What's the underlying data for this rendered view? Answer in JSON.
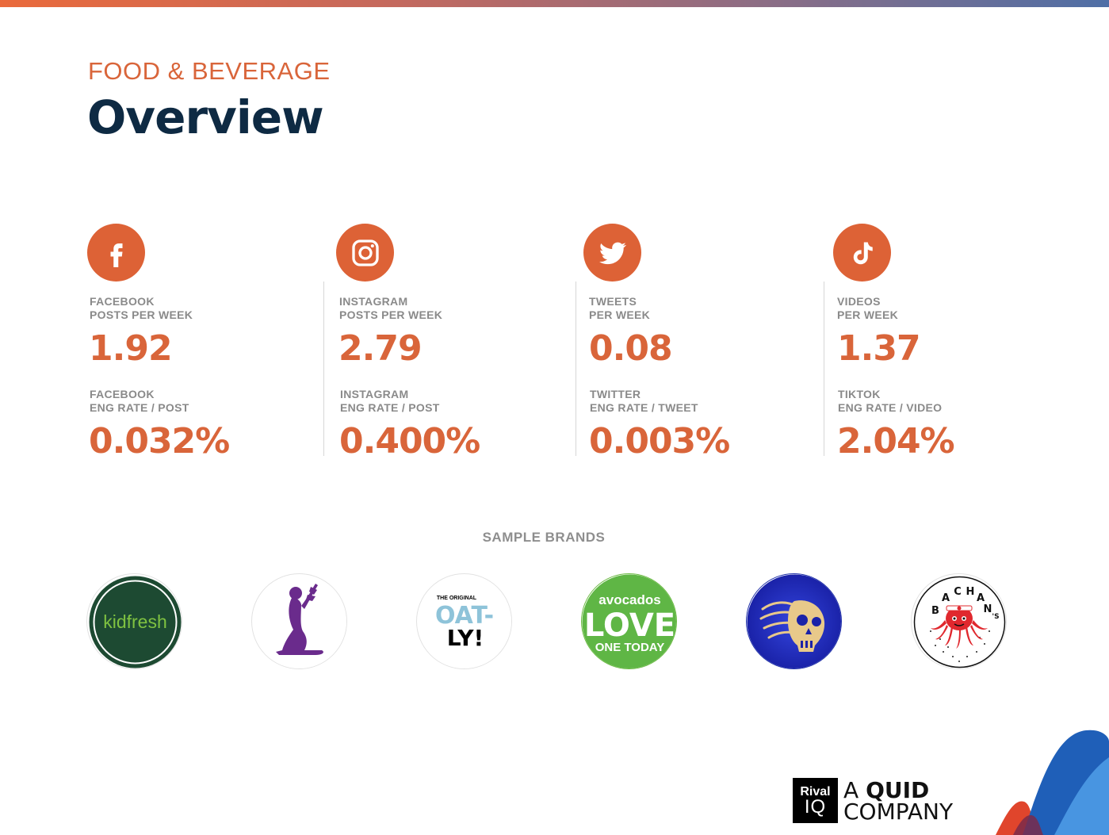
{
  "header": {
    "category": "FOOD & BEVERAGE",
    "title": "Overview"
  },
  "stats": [
    {
      "icon": "facebook-icon",
      "primary_label": [
        "FACEBOOK",
        "POSTS PER WEEK"
      ],
      "primary_value": "1.92",
      "secondary_label": [
        "FACEBOOK",
        "ENG RATE / POST"
      ],
      "secondary_value": "0.032%"
    },
    {
      "icon": "instagram-icon",
      "primary_label": [
        "INSTAGRAM",
        "POSTS PER WEEK"
      ],
      "primary_value": "2.79",
      "secondary_label": [
        "INSTAGRAM",
        "ENG RATE / POST"
      ],
      "secondary_value": "0.400%"
    },
    {
      "icon": "twitter-icon",
      "primary_label": [
        "TWEETS",
        "PER WEEK"
      ],
      "primary_value": "0.08",
      "secondary_label": [
        "TWITTER",
        "ENG RATE / TWEET"
      ],
      "secondary_value": "0.003%"
    },
    {
      "icon": "tiktok-icon",
      "primary_label": [
        "VIDEOS",
        "PER WEEK"
      ],
      "primary_value": "1.37",
      "secondary_label": [
        "TIKTOK",
        "ENG RATE / VIDEO"
      ],
      "secondary_value": "2.04%"
    }
  ],
  "sample_brands": {
    "heading": "SAMPLE BRANDS",
    "brands": [
      {
        "logo": "kidfresh-logo",
        "text": "kidfresh"
      },
      {
        "logo": "kneeling-woman-logo",
        "text": ""
      },
      {
        "logo": "oatly-logo",
        "text": [
          "THE ORIGINAL",
          "OAT-",
          "LY!"
        ]
      },
      {
        "logo": "avocados-logo",
        "text": [
          "avocados",
          "LOVE",
          "ONE TODAY"
        ]
      },
      {
        "logo": "skull-logo",
        "text": ""
      },
      {
        "logo": "bachans-logo",
        "text": [
          "B",
          "A",
          "C",
          "H",
          "A",
          "N",
          "'S"
        ]
      }
    ]
  },
  "footer": {
    "badge_top": "Rival",
    "badge_bottom": "IQ",
    "line1_prefix": "A ",
    "line1_bold": "QUID",
    "line2": "COMPANY"
  },
  "colors": {
    "accent": "#dd6236",
    "title": "#0e2a43",
    "label": "#8a8a8a"
  }
}
